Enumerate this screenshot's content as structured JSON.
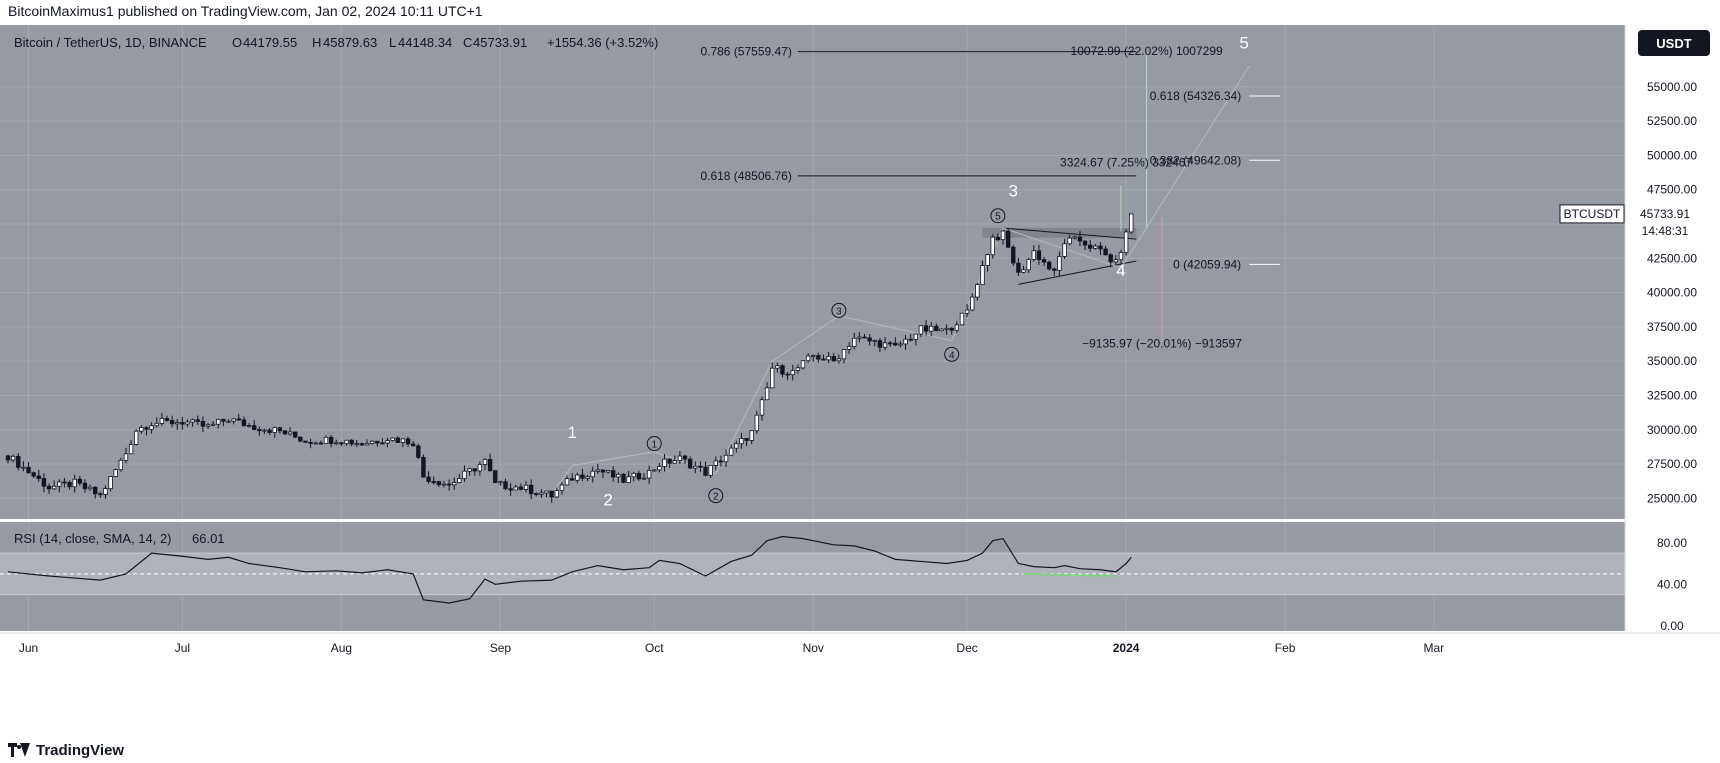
{
  "header": {
    "published": "BitcoinMaximus1 published on TradingView.com, Jan 02, 2024 10:11 UTC+1"
  },
  "symbol": {
    "title": "Bitcoin / TetherUS, 1D, BINANCE",
    "o_label": "O",
    "o_value": "44179.55",
    "h_label": "H",
    "h_value": "45879.63",
    "l_label": "L",
    "l_value": "44148.34",
    "c_label": "C",
    "c_value": "45733.91",
    "change": "+1554.36 (+3.52%)"
  },
  "currency_button": "USDT",
  "price_tag": {
    "ticker": "BTCUSDT",
    "price": "45733.91",
    "countdown": "14:48:31"
  },
  "rsi": {
    "label": "RSI (14, close, SMA, 14, 2)",
    "value": "66.01"
  },
  "footer": {
    "brand": "TradingView",
    "logo_icon": "tradingview-logo-icon"
  },
  "colors": {
    "panel_bg": "#969aa3",
    "grid": "#a4a8b0",
    "text": "#131722",
    "label_white": "#ffffff"
  },
  "chart_data": [
    {
      "type": "candlestick",
      "title": "Bitcoin / TetherUS, 1D, BINANCE",
      "ylim": [
        23500,
        59500
      ],
      "y_ticks": [
        25000,
        27500,
        30000,
        32500,
        35000,
        37500,
        40000,
        42500,
        45000,
        47500,
        50000,
        52500,
        55000
      ],
      "y_tick_labels": [
        "25000.00",
        "27500.00",
        "30000.00",
        "32500.00",
        "35000.00",
        "37500.00",
        "40000.00",
        "42500.00",
        "45000.00",
        "47500.00",
        "50000.00",
        "52500.00",
        "55000.00"
      ],
      "x_range": [
        "2023-05-28",
        "2024-03-10"
      ],
      "x_ticks": [
        {
          "label": "Jun",
          "date": "2023-06-01"
        },
        {
          "label": "Jul",
          "date": "2023-07-01"
        },
        {
          "label": "Aug",
          "date": "2023-08-01"
        },
        {
          "label": "Sep",
          "date": "2023-09-01"
        },
        {
          "label": "Oct",
          "date": "2023-10-01"
        },
        {
          "label": "Nov",
          "date": "2023-11-01"
        },
        {
          "label": "Dec",
          "date": "2023-12-01"
        },
        {
          "label": "2024",
          "date": "2024-01-01"
        },
        {
          "label": "Feb",
          "date": "2024-02-01"
        },
        {
          "label": "Mar",
          "date": "2024-03-01"
        }
      ],
      "grid": true,
      "closes": [
        {
          "date": "2023-05-28",
          "close": 28100
        },
        {
          "date": "2023-06-05",
          "close": 25800
        },
        {
          "date": "2023-06-10",
          "close": 26100
        },
        {
          "date": "2023-06-15",
          "close": 25200
        },
        {
          "date": "2023-06-20",
          "close": 28300
        },
        {
          "date": "2023-06-22",
          "close": 30000
        },
        {
          "date": "2023-06-25",
          "close": 30500
        },
        {
          "date": "2023-07-01",
          "close": 30600
        },
        {
          "date": "2023-07-06",
          "close": 30200
        },
        {
          "date": "2023-07-10",
          "close": 30800
        },
        {
          "date": "2023-07-14",
          "close": 30300
        },
        {
          "date": "2023-07-20",
          "close": 29900
        },
        {
          "date": "2023-07-25",
          "close": 29200
        },
        {
          "date": "2023-07-31",
          "close": 29300
        },
        {
          "date": "2023-08-05",
          "close": 29000
        },
        {
          "date": "2023-08-10",
          "close": 29400
        },
        {
          "date": "2023-08-15",
          "close": 29100
        },
        {
          "date": "2023-08-17",
          "close": 26600
        },
        {
          "date": "2023-08-22",
          "close": 26000
        },
        {
          "date": "2023-08-29",
          "close": 27700
        },
        {
          "date": "2023-08-31",
          "close": 26000
        },
        {
          "date": "2023-09-05",
          "close": 25800
        },
        {
          "date": "2023-09-11",
          "close": 25200
        },
        {
          "date": "2023-09-15",
          "close": 26500
        },
        {
          "date": "2023-09-20",
          "close": 27100
        },
        {
          "date": "2023-09-25",
          "close": 26300
        },
        {
          "date": "2023-09-30",
          "close": 26900
        },
        {
          "date": "2023-10-02",
          "close": 27500
        },
        {
          "date": "2023-10-06",
          "close": 27900
        },
        {
          "date": "2023-10-11",
          "close": 26900
        },
        {
          "date": "2023-10-16",
          "close": 28500
        },
        {
          "date": "2023-10-20",
          "close": 29800
        },
        {
          "date": "2023-10-23",
          "close": 33000
        },
        {
          "date": "2023-10-24",
          "close": 34500
        },
        {
          "date": "2023-10-28",
          "close": 34200
        },
        {
          "date": "2023-11-01",
          "close": 35400
        },
        {
          "date": "2023-11-05",
          "close": 35000
        },
        {
          "date": "2023-11-09",
          "close": 36700
        },
        {
          "date": "2023-11-13",
          "close": 36400
        },
        {
          "date": "2023-11-17",
          "close": 36000
        },
        {
          "date": "2023-11-22",
          "close": 37300
        },
        {
          "date": "2023-11-27",
          "close": 37200
        },
        {
          "date": "2023-12-01",
          "close": 38600
        },
        {
          "date": "2023-12-04",
          "close": 41900
        },
        {
          "date": "2023-12-06",
          "close": 44000
        },
        {
          "date": "2023-12-08",
          "close": 44200
        },
        {
          "date": "2023-12-11",
          "close": 41300
        },
        {
          "date": "2023-12-14",
          "close": 43000
        },
        {
          "date": "2023-12-18",
          "close": 41400
        },
        {
          "date": "2023-12-20",
          "close": 43700
        },
        {
          "date": "2023-12-23",
          "close": 43800
        },
        {
          "date": "2023-12-27",
          "close": 43000
        },
        {
          "date": "2023-12-30",
          "close": 42100
        },
        {
          "date": "2024-01-01",
          "close": 44200
        },
        {
          "date": "2024-01-02",
          "close": 45733.91
        }
      ],
      "zone": {
        "from_date": "2023-12-04",
        "to_date": "2024-01-03",
        "low": 44000,
        "high": 44700
      },
      "triangle": {
        "upper": [
          [
            "2023-12-08",
            44700
          ],
          [
            "2024-01-03",
            43900
          ]
        ],
        "lower": [
          [
            "2023-12-11",
            40600
          ],
          [
            "2024-01-03",
            42300
          ]
        ]
      },
      "fib_levels": [
        {
          "label": "0.786 (57559.47)",
          "price": 57559.47,
          "from_date": "2023-10-29",
          "to_date": "2024-01-03"
        },
        {
          "label": "0.618 (48506.76)",
          "price": 48506.76,
          "from_date": "2023-10-29",
          "to_date": "2024-01-03"
        },
        {
          "label": "0.618 (54326.34)",
          "price": 54326.34,
          "from_date": "2024-01-25",
          "to_date": "2024-01-31"
        },
        {
          "label": "0.382 (49642.08)",
          "price": 49642.08,
          "from_date": "2024-01-25",
          "to_date": "2024-01-31"
        },
        {
          "label": "0 (42059.94)",
          "price": 42059.94,
          "from_date": "2024-01-25",
          "to_date": "2024-01-31"
        }
      ],
      "measures": [
        {
          "label": "10072.99 (22.02%) 1007299",
          "price": 57300,
          "date": "2024-01-05"
        },
        {
          "label": "3324.67 (7.25%) 332467",
          "price": 49200,
          "date": "2024-01-01"
        },
        {
          "label": "−9135.97 (−20.01%) −913597",
          "price": 36000,
          "date": "2024-01-08"
        }
      ],
      "wave_labels": [
        {
          "text": "1",
          "date": "2023-09-15",
          "price": 29400,
          "style": "plain"
        },
        {
          "text": "2",
          "date": "2023-09-22",
          "price": 24500,
          "style": "plain"
        },
        {
          "text": "3",
          "date": "2023-12-10",
          "price": 47000,
          "style": "plain"
        },
        {
          "text": "4",
          "date": "2023-12-31",
          "price": 41200,
          "style": "plain"
        },
        {
          "text": "5",
          "date": "2024-01-24",
          "price": 57800,
          "style": "plain"
        },
        {
          "text": "1",
          "date": "2023-10-01",
          "price": 29000,
          "style": "circled"
        },
        {
          "text": "2",
          "date": "2023-10-13",
          "price": 25200,
          "style": "circled"
        },
        {
          "text": "3",
          "date": "2023-11-06",
          "price": 38700,
          "style": "circled"
        },
        {
          "text": "4",
          "date": "2023-11-28",
          "price": 35500,
          "style": "circled"
        },
        {
          "text": "5",
          "date": "2023-12-07",
          "price": 45600,
          "style": "circled"
        }
      ],
      "path_projection": [
        [
          "2023-09-11",
          25300
        ],
        [
          "2023-09-15",
          27400
        ],
        [
          "2023-10-01",
          28400
        ],
        [
          "2023-10-13",
          26800
        ],
        [
          "2023-10-24",
          35000
        ],
        [
          "2023-11-06",
          38300
        ],
        [
          "2023-11-28",
          36500
        ],
        [
          "2023-12-08",
          44700
        ],
        [
          "2023-12-31",
          41800
        ],
        [
          "2024-01-25",
          56500
        ]
      ]
    },
    {
      "type": "line",
      "title": "RSI (14, close, SMA, 14, 2)",
      "ylim": [
        -5,
        100
      ],
      "y_ticks": [
        0,
        40,
        80
      ],
      "y_tick_labels": [
        "0.00",
        "40.00",
        "80.00"
      ],
      "band": [
        30,
        70
      ],
      "midline": 50,
      "x": [
        "2023-05-28",
        "2023-06-05",
        "2023-06-10",
        "2023-06-15",
        "2023-06-20",
        "2023-06-25",
        "2023-07-01",
        "2023-07-06",
        "2023-07-10",
        "2023-07-14",
        "2023-07-20",
        "2023-07-25",
        "2023-07-31",
        "2023-08-05",
        "2023-08-10",
        "2023-08-15",
        "2023-08-17",
        "2023-08-22",
        "2023-08-26",
        "2023-08-29",
        "2023-08-31",
        "2023-09-05",
        "2023-09-11",
        "2023-09-15",
        "2023-09-20",
        "2023-09-25",
        "2023-09-30",
        "2023-10-02",
        "2023-10-06",
        "2023-10-11",
        "2023-10-16",
        "2023-10-20",
        "2023-10-23",
        "2023-10-26",
        "2023-10-30",
        "2023-11-02",
        "2023-11-05",
        "2023-11-09",
        "2023-11-13",
        "2023-11-17",
        "2023-11-22",
        "2023-11-27",
        "2023-12-01",
        "2023-12-04",
        "2023-12-06",
        "2023-12-08",
        "2023-12-11",
        "2023-12-14",
        "2023-12-18",
        "2023-12-20",
        "2023-12-23",
        "2023-12-27",
        "2023-12-30",
        "2024-01-01",
        "2024-01-02"
      ],
      "values": [
        52,
        48,
        46,
        44,
        50,
        70,
        67,
        64,
        66,
        60,
        56,
        52,
        53,
        51,
        54,
        50,
        25,
        22,
        26,
        45,
        40,
        43,
        44,
        52,
        58,
        54,
        56,
        63,
        60,
        48,
        62,
        68,
        82,
        86,
        84,
        81,
        78,
        77,
        72,
        64,
        62,
        60,
        63,
        70,
        82,
        84,
        60,
        57,
        56,
        58,
        55,
        54,
        52,
        60,
        66.01
      ]
    }
  ]
}
